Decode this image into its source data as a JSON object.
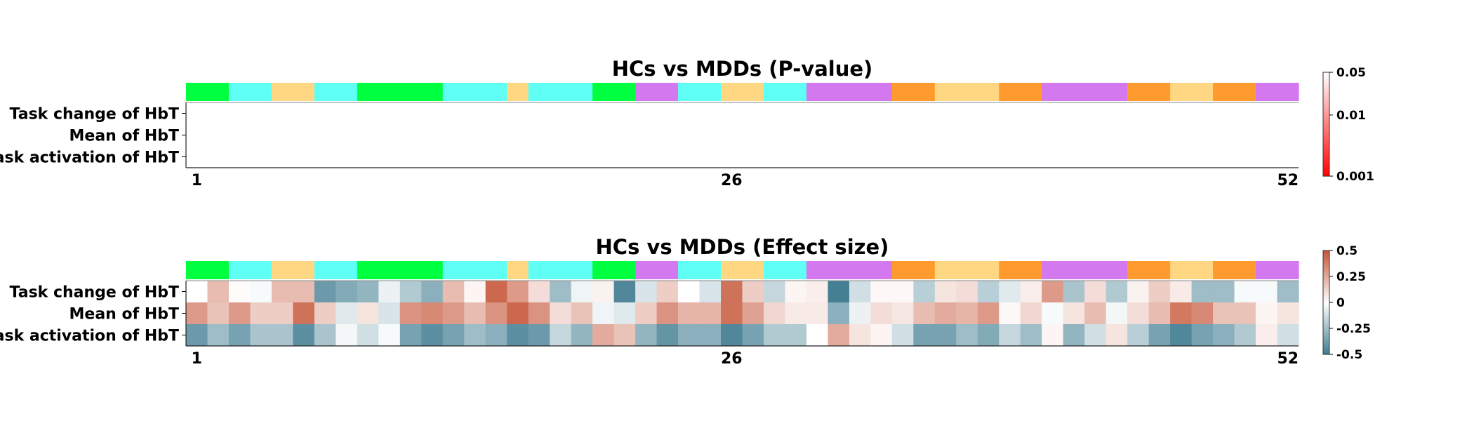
{
  "chart_data": [
    {
      "type": "heatmap",
      "title": "HCs vs MDDs (P-value)",
      "rows": [
        "Task change of HbT",
        "Mean of HbT",
        "Task activation of HbT"
      ],
      "x_tick_labels": [
        "1",
        "26",
        "52"
      ],
      "x_ticks": [
        1,
        26,
        52
      ],
      "n_channels": 52,
      "scale": "log",
      "colorbar": {
        "min": 0.001,
        "max": 0.05,
        "ticks": [
          0.001,
          0.01,
          0.05
        ],
        "tick_labels": [
          "0.001",
          "0.01",
          "0.05"
        ],
        "colors": [
          "#ff0000",
          "#ffffff"
        ]
      },
      "values": [
        [],
        [],
        []
      ],
      "note_values": "no significant cells (all blank)"
    },
    {
      "type": "heatmap",
      "title": "HCs vs MDDs (Effect size)",
      "rows": [
        "Task change of HbT",
        "Mean of HbT",
        "Task activation of HbT"
      ],
      "x_tick_labels": [
        "1",
        "26",
        "52"
      ],
      "x_ticks": [
        1,
        26,
        52
      ],
      "n_channels": 52,
      "colorbar": {
        "min": -0.5,
        "max": 0.5,
        "ticks": [
          -0.5,
          -0.25,
          0,
          0.25,
          0.5
        ],
        "tick_labels": [
          "-0.5",
          "-0.25",
          "0",
          "0.25",
          "0.5"
        ],
        "colors": [
          "#3d7a8f",
          "#ffffff",
          "#c6573a"
        ]
      },
      "values": [
        [
          0.0,
          0.2,
          0.01,
          -0.02,
          0.2,
          0.2,
          -0.38,
          -0.32,
          -0.28,
          -0.05,
          -0.2,
          -0.3,
          0.2,
          0.03,
          0.45,
          0.3,
          0.1,
          -0.25,
          -0.04,
          0.04,
          -0.45,
          -0.1,
          0.15,
          0.0,
          -0.1,
          0.42,
          0.15,
          -0.15,
          0.03,
          0.05,
          -0.48,
          -0.12,
          0.02,
          0.02,
          -0.18,
          0.08,
          0.1,
          -0.18,
          -0.08,
          0.05,
          0.3,
          -0.22,
          0.1,
          -0.2,
          0.04,
          0.15,
          0.06,
          -0.25,
          -0.25,
          -0.02,
          -0.02,
          -0.25
        ],
        [
          0.3,
          0.18,
          0.3,
          0.15,
          0.15,
          0.42,
          0.15,
          -0.08,
          0.08,
          -0.1,
          0.32,
          0.35,
          0.3,
          0.2,
          0.32,
          0.45,
          0.32,
          0.1,
          0.18,
          -0.04,
          -0.08,
          0.15,
          0.32,
          0.22,
          0.22,
          0.42,
          0.28,
          0.12,
          0.06,
          0.06,
          -0.3,
          -0.05,
          0.1,
          0.07,
          0.2,
          0.25,
          0.22,
          0.3,
          0.02,
          0.12,
          -0.02,
          0.08,
          0.2,
          -0.03,
          0.1,
          0.2,
          0.4,
          0.35,
          0.18,
          0.18,
          0.03,
          0.08
        ],
        [
          -0.38,
          -0.25,
          -0.35,
          -0.22,
          -0.22,
          -0.42,
          -0.22,
          -0.03,
          -0.12,
          -0.02,
          -0.35,
          -0.42,
          -0.35,
          -0.25,
          -0.3,
          -0.42,
          -0.38,
          -0.15,
          -0.28,
          0.25,
          0.18,
          -0.28,
          -0.4,
          -0.3,
          -0.3,
          -0.45,
          -0.35,
          -0.2,
          -0.2,
          0.0,
          0.25,
          0.08,
          0.03,
          -0.12,
          -0.35,
          -0.35,
          -0.25,
          -0.32,
          -0.15,
          -0.25,
          0.03,
          -0.28,
          -0.12,
          0.08,
          -0.18,
          -0.35,
          -0.45,
          -0.35,
          -0.3,
          -0.2,
          0.05,
          -0.12
        ]
      ]
    }
  ],
  "region_colors": [
    "#00ff3f",
    "#00ff3f",
    "#5ffff6",
    "#5ffff6",
    "#ffd783",
    "#ffd783",
    "#5ffff6",
    "#5ffff6",
    "#00ff3f",
    "#00ff3f",
    "#00ff3f",
    "#00ff3f",
    "#5ffff6",
    "#5ffff6",
    "#5ffff6",
    "#ffd783",
    "#5ffff6",
    "#5ffff6",
    "#5ffff6",
    "#00ff3f",
    "#00ff3f",
    "#d478f0",
    "#d478f0",
    "#5ffff6",
    "#5ffff6",
    "#ffd783",
    "#ffd783",
    "#5ffff6",
    "#5ffff6",
    "#d478f0",
    "#d478f0",
    "#d478f0",
    "#d478f0",
    "#ff9b2e",
    "#ff9b2e",
    "#ffd783",
    "#ffd783",
    "#ffd783",
    "#ff9b2e",
    "#ff9b2e",
    "#d478f0",
    "#d478f0",
    "#d478f0",
    "#d478f0",
    "#ff9b2e",
    "#ff9b2e",
    "#ffd783",
    "#ffd783",
    "#ff9b2e",
    "#ff9b2e",
    "#d478f0",
    "#d478f0"
  ]
}
